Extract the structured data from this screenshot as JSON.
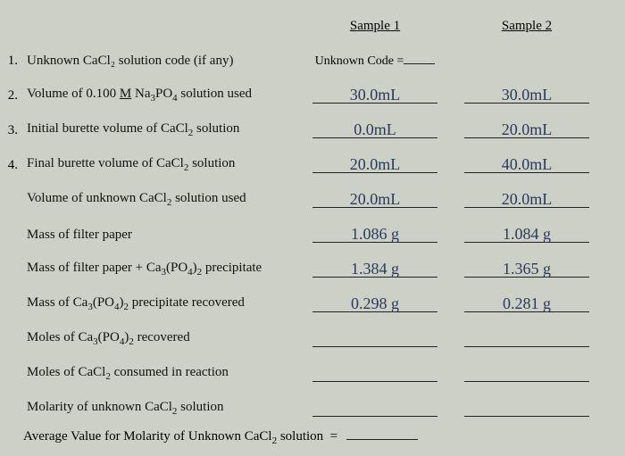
{
  "header": {
    "s1": "Sample 1",
    "s2": "Sample 2"
  },
  "rows": [
    {
      "num": "1.",
      "label": "Unknown CaCl₂ solution code (if any)",
      "s1printed": "Unknown Code =",
      "s1": "",
      "s2": ""
    },
    {
      "num": "2.",
      "label": "Volume of 0.100 M Na₃PO₄ solution used",
      "s1": "30.0mL",
      "s2": "30.0mL"
    },
    {
      "num": "3.",
      "label": "Initial burette volume of CaCl₂ solution",
      "s1": "0.0mL",
      "s2": "20.0mL"
    },
    {
      "num": "4.",
      "label": "Final burette volume of CaCl₂ solution",
      "s1": "20.0mL",
      "s2": "40.0mL"
    },
    {
      "num": "",
      "label": "Volume of unknown CaCl₂ solution used",
      "s1": "20.0mL",
      "s2": "20.0mL"
    },
    {
      "num": "",
      "label": "Mass of filter paper",
      "s1": "1.086 g",
      "s2": "1.084 g"
    },
    {
      "num": "",
      "label": "Mass of filter paper + Ca₃(PO₄)₂ precipitate",
      "s1": "1.384 g",
      "s2": "1.365 g"
    },
    {
      "num": "",
      "label": "Mass of Ca₃(PO₄)₂ precipitate recovered",
      "s1": "0.298 g",
      "s2": "0.281 g"
    },
    {
      "num": "",
      "label": "Moles of Ca₃(PO₄)₂ recovered",
      "s1": "",
      "s2": ""
    },
    {
      "num": "",
      "label": "Moles of CaCl₂ consumed in reaction",
      "s1": "",
      "s2": ""
    },
    {
      "num": "",
      "label": "Molarity of unknown CaCl₂ solution",
      "s1": "",
      "s2": ""
    }
  ],
  "avg": {
    "label": "Average Value for Molarity of Unknown CaCl₂ solution  ="
  }
}
